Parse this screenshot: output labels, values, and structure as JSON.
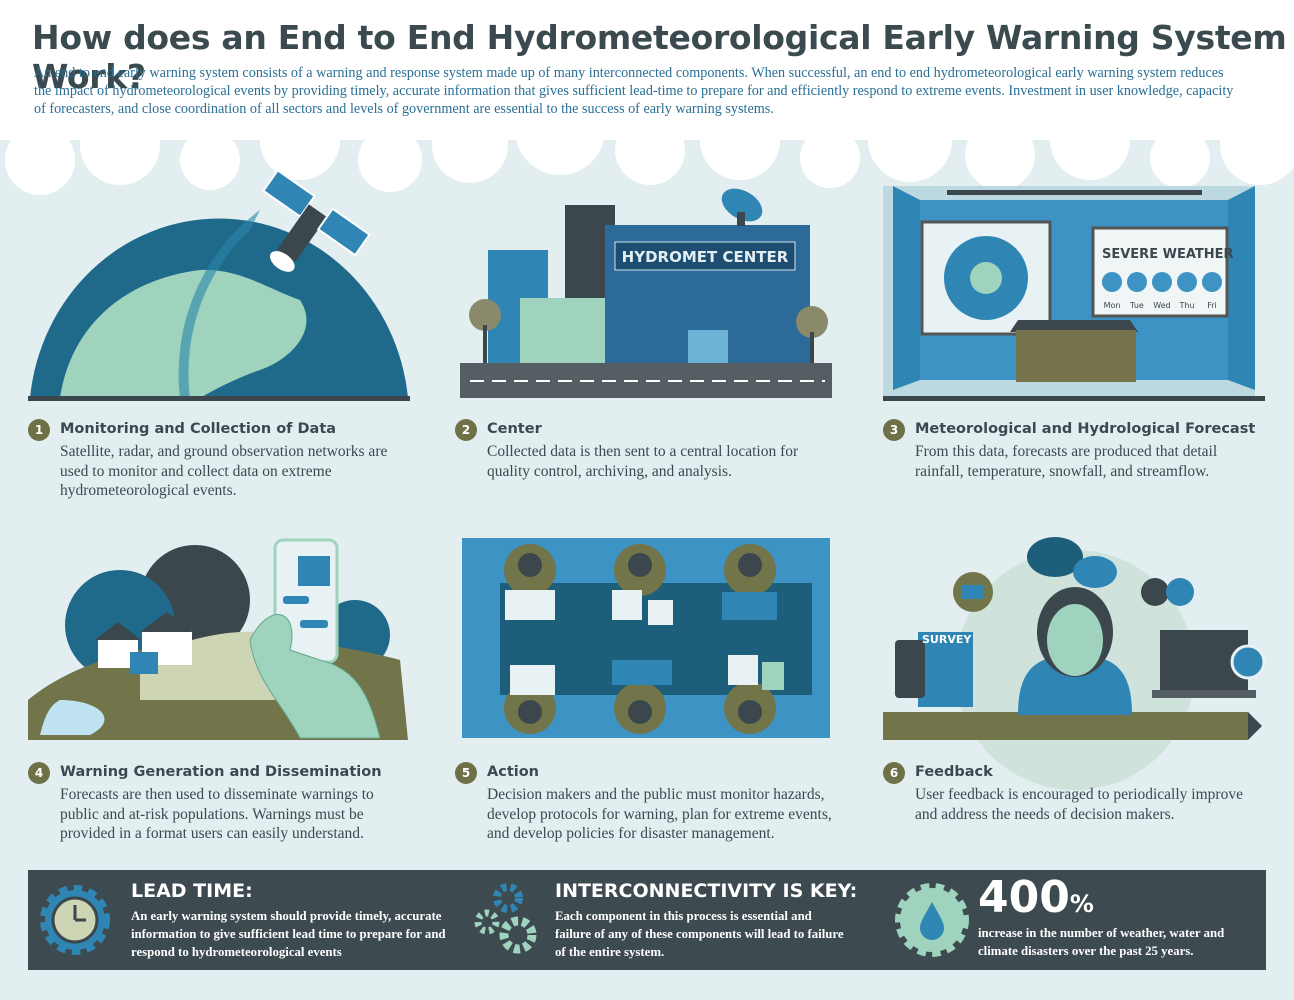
{
  "header": {
    "title": "How does an End to End Hydrometeorological Early Warning System Work?",
    "intro": "An end to end early warning system consists of a warning and response system made up of many interconnected components. When successful, an end to end hydrometeorological early warning system reduces the impact of hydrometeorological events by providing timely, accurate information that gives sufficient lead-time to prepare for and efficiently respond to extreme events.  Investment in user knowledge, capacity of forecasters, and close coordination of all sectors and levels of government are essential to the success of early warning systems."
  },
  "steps": [
    {
      "number": 1,
      "title": "Monitoring and Collection of Data",
      "text": "Satellite, radar, and ground observation networks are used to monitor and collect data on extreme hydrometeorological events."
    },
    {
      "number": 2,
      "title": "Center",
      "text": "Collected data is then sent to a central location for quality control, archiving, and analysis."
    },
    {
      "number": 3,
      "title": "Meteorological and Hydrological Forecast",
      "text": "From this data, forecasts are produced that detail rainfall, temperature, snowfall, and streamflow."
    },
    {
      "number": 4,
      "title": "Warning Generation and Dissemination",
      "text": "Forecasts are then used to disseminate warnings to public and at-risk populations.  Warnings must be provided in a format users can easily understand."
    },
    {
      "number": 5,
      "title": "Action",
      "text": "Decision makers and the public must monitor hazards, develop protocols for warning, plan for extreme events, and develop policies for disaster management."
    },
    {
      "number": 6,
      "title": "Feedback",
      "text": "User feedback is encouraged to periodically improve and address the needs of decision makers."
    }
  ],
  "illustrations": {
    "center_sign": "HYDROMET CENTER",
    "screen_title": "SEVERE WEATHER",
    "days": [
      "Mon",
      "Tue",
      "Wed",
      "Thu",
      "Fri"
    ],
    "survey": "SURVEY"
  },
  "footer": {
    "lead_time": {
      "title": "LEAD TIME:",
      "text": "An early warning system should provide timely, accurate information to give sufficient lead time to prepare for and respond to hydrometeorological events"
    },
    "interconnectivity": {
      "title": "INTERCONNECTIVITY IS KEY:",
      "text": "Each component in this process is essential and failure of any of these components will lead to failure of the entire system."
    },
    "statistic": {
      "value": 400,
      "unit": "%",
      "text": "increase in the number of weather, water and climate disasters over the past 25 years."
    }
  }
}
